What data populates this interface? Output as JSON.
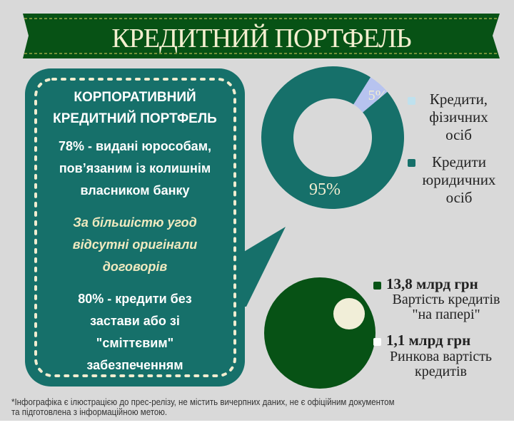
{
  "title": "КРЕДИТНИЙ ПОРТФЕЛЬ",
  "box": {
    "heading": [
      "КОРПОРАТИВНИЙ",
      "КРЕДИТНИЙ ПОРТФЕЛЬ"
    ],
    "fact1": "78% - видані юрособам, пов’язаним із колишнім власником банку",
    "fact2": "За більшістю угод відсутні оригінали договорів",
    "fact3": "80% - кредити без застави або зі \"сміттєвим\" забезпеченням"
  },
  "chart_data": [
    {
      "type": "pie",
      "variant": "donut",
      "categories": [
        "Кредити, фізичних осіб",
        "Кредити юридичних осіб"
      ],
      "values": [
        5,
        95
      ],
      "labels": [
        "5%",
        "95%"
      ],
      "colors": [
        "#b7c3ef",
        "#16706a"
      ],
      "legend_colors": [
        "#bfe1ee",
        "#16706a"
      ]
    },
    {
      "type": "pie",
      "variant": "nested-circles",
      "series": [
        {
          "name": "Вартість кредитів \"на папері\"",
          "value": 13.8,
          "label": "13,8 млрд грн",
          "color": "#075215"
        },
        {
          "name": "Ринкова вартість кредитів",
          "value": 1.1,
          "label": "1,1 млрд грн",
          "color": "#f1eed8"
        }
      ]
    }
  ],
  "legend1": {
    "a": [
      "Кредити,",
      "фізичних",
      "осіб"
    ],
    "b": [
      "Кредити",
      "юридичних",
      "осіб"
    ]
  },
  "legend2": {
    "a_value": "13,8 млрд грн",
    "a_label": [
      "Вартість кредитів",
      "\"на папері\""
    ],
    "b_value": "1,1 млрд грн",
    "b_label": [
      "Ринкова вартість",
      "кредитів"
    ]
  },
  "footnote": [
    "*Інфографіка є ілюстрацією до прес-релізу,  не містить вичерпних даних, не є офіційним документом",
    "та підготовлена з інформаційною метою."
  ]
}
